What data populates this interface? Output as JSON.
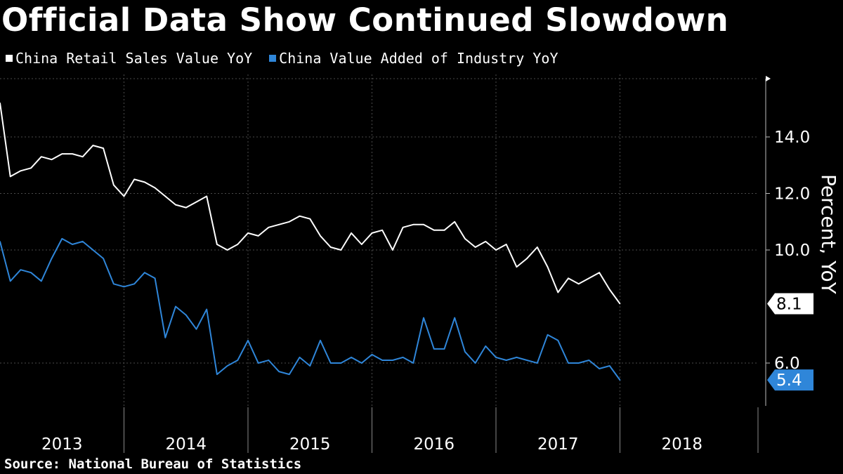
{
  "title": "Official Data Show Continued Slowdown",
  "source": "Source: National Bureau of Statistics",
  "colors": {
    "background": "#000000",
    "retail": "#ffffff",
    "industry": "#2f86d9",
    "grid": "#555555"
  },
  "chart_data": {
    "type": "line",
    "ylabel": "Percent, YoY",
    "ylim": [
      5.0,
      16.0
    ],
    "yticks": [
      6.0,
      10.0,
      12.0,
      14.0
    ],
    "ytick_labels": [
      "6.0",
      "10.0",
      "12.0",
      "14.0"
    ],
    "x_years": [
      "2013",
      "2014",
      "2015",
      "2016",
      "2017",
      "2018"
    ],
    "grid": true,
    "legend_position": "top-left",
    "series": [
      {
        "name": "China Retail Sales Value YoY",
        "color": "#ffffff",
        "end_label": "8.1",
        "points": [
          [
            "2013-01",
            15.2
          ],
          [
            "2013-02",
            12.6
          ],
          [
            "2013-03",
            12.8
          ],
          [
            "2013-04",
            12.9
          ],
          [
            "2013-05",
            13.3
          ],
          [
            "2013-06",
            13.2
          ],
          [
            "2013-07",
            13.4
          ],
          [
            "2013-08",
            13.4
          ],
          [
            "2013-09",
            13.3
          ],
          [
            "2013-10",
            13.7
          ],
          [
            "2013-11",
            13.6
          ],
          [
            "2013-12",
            12.3
          ],
          [
            "2014-01",
            11.9
          ],
          [
            "2014-02",
            12.5
          ],
          [
            "2014-03",
            12.4
          ],
          [
            "2014-04",
            12.2
          ],
          [
            "2014-05",
            11.9
          ],
          [
            "2014-06",
            11.6
          ],
          [
            "2014-07",
            11.5
          ],
          [
            "2014-08",
            11.7
          ],
          [
            "2014-09",
            11.9
          ],
          [
            "2014-10",
            10.2
          ],
          [
            "2014-11",
            10.0
          ],
          [
            "2014-12",
            10.2
          ],
          [
            "2015-01",
            10.6
          ],
          [
            "2015-02",
            10.5
          ],
          [
            "2015-03",
            10.8
          ],
          [
            "2015-04",
            10.9
          ],
          [
            "2015-05",
            11.0
          ],
          [
            "2015-06",
            11.2
          ],
          [
            "2015-07",
            11.1
          ],
          [
            "2015-08",
            10.5
          ],
          [
            "2015-09",
            10.1
          ],
          [
            "2015-10",
            10.0
          ],
          [
            "2015-11",
            10.6
          ],
          [
            "2015-12",
            10.2
          ],
          [
            "2016-01",
            10.6
          ],
          [
            "2016-02",
            10.7
          ],
          [
            "2016-03",
            10.0
          ],
          [
            "2016-04",
            10.8
          ],
          [
            "2016-05",
            10.9
          ],
          [
            "2016-06",
            10.9
          ],
          [
            "2016-07",
            10.7
          ],
          [
            "2016-08",
            10.7
          ],
          [
            "2016-09",
            11.0
          ],
          [
            "2016-10",
            10.4
          ],
          [
            "2016-11",
            10.1
          ],
          [
            "2016-12",
            10.3
          ],
          [
            "2017-01",
            10.0
          ],
          [
            "2017-02",
            10.2
          ],
          [
            "2017-03",
            9.4
          ],
          [
            "2017-04",
            9.7
          ],
          [
            "2017-05",
            10.1
          ],
          [
            "2017-06",
            9.4
          ],
          [
            "2017-07",
            8.5
          ],
          [
            "2017-08",
            9.0
          ],
          [
            "2017-09",
            8.8
          ],
          [
            "2017-10",
            9.0
          ],
          [
            "2017-11",
            9.2
          ],
          [
            "2017-12",
            8.6
          ],
          [
            "2018-01",
            8.1
          ]
        ]
      },
      {
        "name": "China Value Added of Industry YoY",
        "color": "#2f86d9",
        "end_label": "5.4",
        "points": [
          [
            "2013-01",
            10.3
          ],
          [
            "2013-02",
            8.9
          ],
          [
            "2013-03",
            9.3
          ],
          [
            "2013-04",
            9.2
          ],
          [
            "2013-05",
            8.9
          ],
          [
            "2013-06",
            9.7
          ],
          [
            "2013-07",
            10.4
          ],
          [
            "2013-08",
            10.2
          ],
          [
            "2013-09",
            10.3
          ],
          [
            "2013-10",
            10.0
          ],
          [
            "2013-11",
            9.7
          ],
          [
            "2013-12",
            8.8
          ],
          [
            "2014-01",
            8.7
          ],
          [
            "2014-02",
            8.8
          ],
          [
            "2014-03",
            9.2
          ],
          [
            "2014-04",
            9.0
          ],
          [
            "2014-05",
            6.9
          ],
          [
            "2014-06",
            8.0
          ],
          [
            "2014-07",
            7.7
          ],
          [
            "2014-08",
            7.2
          ],
          [
            "2014-09",
            7.9
          ],
          [
            "2014-10",
            5.6
          ],
          [
            "2014-11",
            5.9
          ],
          [
            "2014-12",
            6.1
          ],
          [
            "2015-01",
            6.8
          ],
          [
            "2015-02",
            6.0
          ],
          [
            "2015-03",
            6.1
          ],
          [
            "2015-04",
            5.7
          ],
          [
            "2015-05",
            5.6
          ],
          [
            "2015-06",
            6.2
          ],
          [
            "2015-07",
            5.9
          ],
          [
            "2015-08",
            6.8
          ],
          [
            "2015-09",
            6.0
          ],
          [
            "2015-10",
            6.0
          ],
          [
            "2015-11",
            6.2
          ],
          [
            "2015-12",
            6.0
          ],
          [
            "2016-01",
            6.3
          ],
          [
            "2016-02",
            6.1
          ],
          [
            "2016-03",
            6.1
          ],
          [
            "2016-04",
            6.2
          ],
          [
            "2016-05",
            6.0
          ],
          [
            "2016-06",
            7.6
          ],
          [
            "2016-07",
            6.5
          ],
          [
            "2016-08",
            6.5
          ],
          [
            "2016-09",
            7.6
          ],
          [
            "2016-10",
            6.4
          ],
          [
            "2016-11",
            6.0
          ],
          [
            "2016-12",
            6.6
          ],
          [
            "2017-01",
            6.2
          ],
          [
            "2017-02",
            6.1
          ],
          [
            "2017-03",
            6.2
          ],
          [
            "2017-04",
            6.1
          ],
          [
            "2017-05",
            6.0
          ],
          [
            "2017-06",
            7.0
          ],
          [
            "2017-07",
            6.8
          ],
          [
            "2017-08",
            6.0
          ],
          [
            "2017-09",
            6.0
          ],
          [
            "2017-10",
            6.1
          ],
          [
            "2017-11",
            5.8
          ],
          [
            "2017-12",
            5.9
          ],
          [
            "2018-01",
            5.4
          ]
        ]
      }
    ]
  }
}
